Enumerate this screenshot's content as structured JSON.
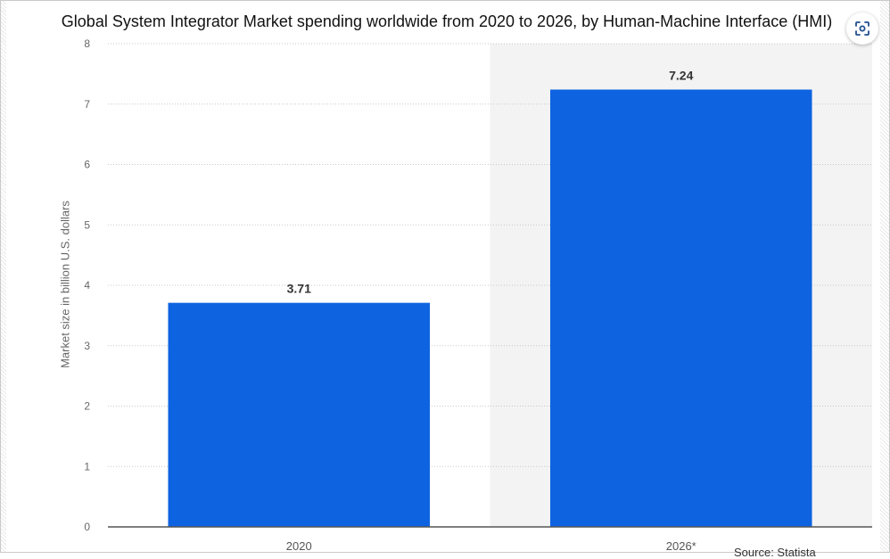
{
  "chart_data": {
    "type": "bar",
    "title": "Global System Integrator Market spending worldwide from 2020 to 2026, by Human-Machine Interface (HMI)",
    "xlabel": "",
    "ylabel": "Market size in billion U.S. dollars",
    "categories": [
      "2020",
      "2026*"
    ],
    "values": [
      3.71,
      7.24
    ],
    "data_labels": [
      "3.71",
      "7.24"
    ],
    "ylim": [
      0,
      8
    ],
    "yticks": [
      0,
      1,
      2,
      3,
      4,
      5,
      6,
      7,
      8
    ],
    "grid": true,
    "forecast_shading": "2026*",
    "bar_color": "#0e63e1",
    "shade_color": "#f3f3f3"
  },
  "source": {
    "label": "Source: Statista"
  },
  "toolbar": {
    "lens_icon": "lens-scan-icon"
  }
}
